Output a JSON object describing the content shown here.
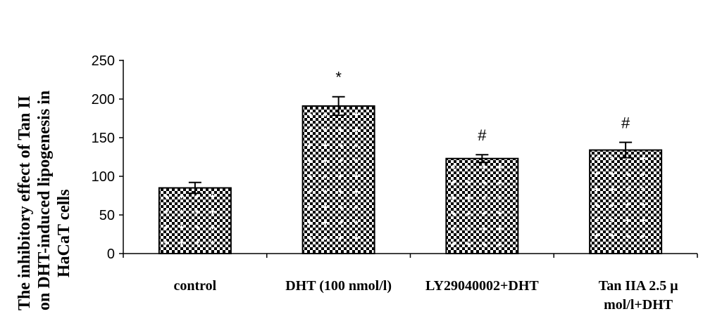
{
  "chart_data": {
    "type": "bar",
    "ylabel_lines": [
      "The inhibitory effect of Tan II",
      "on DHT-induced lipogenesis in",
      "HaCaT cells"
    ],
    "categories": [
      [
        "control"
      ],
      [
        "DHT (100 nmol/l)"
      ],
      [
        "LY29040002+DHT"
      ],
      [
        "Tan IIA 2.5 μ",
        "mol/l+DHT"
      ]
    ],
    "values": [
      85,
      191,
      123,
      134
    ],
    "errors": [
      7,
      12,
      5,
      10
    ],
    "annotations": [
      "",
      "*",
      "#",
      "#"
    ],
    "ylim": [
      0,
      250
    ],
    "yticks": [
      0,
      50,
      100,
      150,
      200,
      250
    ],
    "grid": false,
    "bar_pattern": {
      "fill": "#000000",
      "dots": "#ffffff"
    }
  }
}
